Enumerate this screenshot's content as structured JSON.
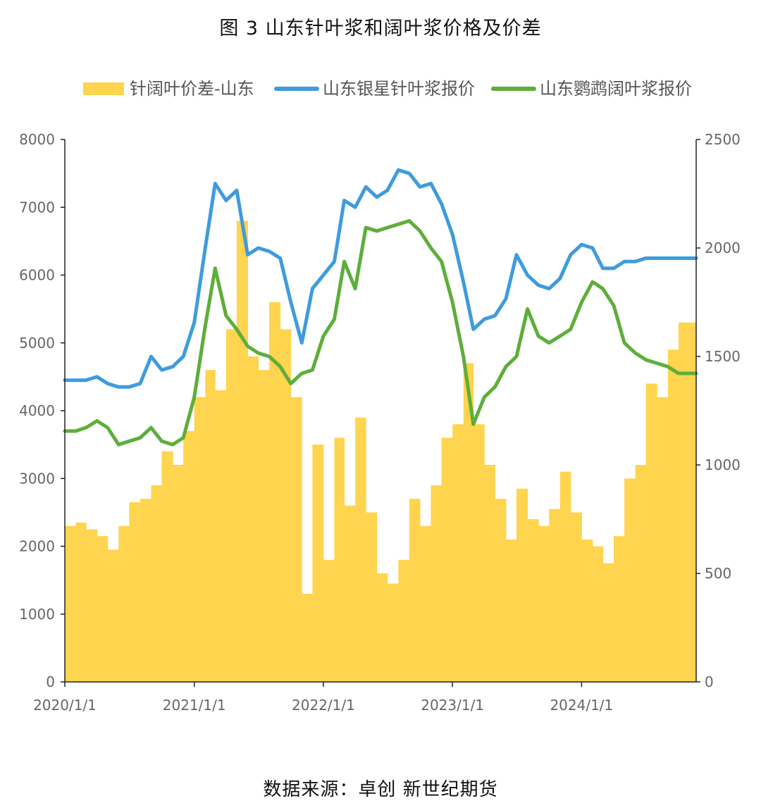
{
  "chart_data": {
    "type": "bar+line",
    "title": "图 3  山东针叶浆和阔叶浆价格及价差",
    "source": "数据来源：卓创  新世纪期货",
    "x_ticks": [
      "2020/1/1",
      "2021/1/1",
      "2022/1/1",
      "2023/1/1",
      "2024/1/1"
    ],
    "x_range": [
      "2020-01-01",
      "2024-11-20"
    ],
    "y_left": {
      "lim": [
        0,
        8000
      ],
      "ticks": [
        0,
        1000,
        2000,
        3000,
        4000,
        5000,
        6000,
        7000,
        8000
      ]
    },
    "y_right": {
      "lim": [
        0,
        2500
      ],
      "ticks": [
        0,
        500,
        1000,
        1500,
        2000,
        2500
      ]
    },
    "legend_placement": "top",
    "series": [
      {
        "name": "针阔叶价差-山东",
        "type": "bar",
        "axis": "left",
        "color": "#FFD44E",
        "points": [
          [
            "2020-01-01",
            2300
          ],
          [
            "2020-02-01",
            2350
          ],
          [
            "2020-03-01",
            2250
          ],
          [
            "2020-04-01",
            2150
          ],
          [
            "2020-05-01",
            1950
          ],
          [
            "2020-06-01",
            2300
          ],
          [
            "2020-07-01",
            2650
          ],
          [
            "2020-08-01",
            2700
          ],
          [
            "2020-09-01",
            2900
          ],
          [
            "2020-10-01",
            3400
          ],
          [
            "2020-11-01",
            3200
          ],
          [
            "2020-12-01",
            3700
          ],
          [
            "2021-01-01",
            4200
          ],
          [
            "2021-02-01",
            4600
          ],
          [
            "2021-03-01",
            4300
          ],
          [
            "2021-04-01",
            5200
          ],
          [
            "2021-05-01",
            6800
          ],
          [
            "2021-06-01",
            4800
          ],
          [
            "2021-07-01",
            4600
          ],
          [
            "2021-08-01",
            5600
          ],
          [
            "2021-09-01",
            5200
          ],
          [
            "2021-10-01",
            4200
          ],
          [
            "2021-11-01",
            1300
          ],
          [
            "2021-12-01",
            3500
          ],
          [
            "2022-01-01",
            1800
          ],
          [
            "2022-02-01",
            3600
          ],
          [
            "2022-03-01",
            2600
          ],
          [
            "2022-04-01",
            3900
          ],
          [
            "2022-05-01",
            2500
          ],
          [
            "2022-06-01",
            1600
          ],
          [
            "2022-07-01",
            1450
          ],
          [
            "2022-08-01",
            1800
          ],
          [
            "2022-09-01",
            2700
          ],
          [
            "2022-10-01",
            2300
          ],
          [
            "2022-11-01",
            2900
          ],
          [
            "2022-12-01",
            3600
          ],
          [
            "2023-01-01",
            3800
          ],
          [
            "2023-02-01",
            4700
          ],
          [
            "2023-03-01",
            3800
          ],
          [
            "2023-04-01",
            3200
          ],
          [
            "2023-05-01",
            2700
          ],
          [
            "2023-06-01",
            2100
          ],
          [
            "2023-07-01",
            2850
          ],
          [
            "2023-08-01",
            2400
          ],
          [
            "2023-09-01",
            2300
          ],
          [
            "2023-10-01",
            2550
          ],
          [
            "2023-11-01",
            3100
          ],
          [
            "2023-12-01",
            2500
          ],
          [
            "2024-01-01",
            2100
          ],
          [
            "2024-02-01",
            2000
          ],
          [
            "2024-03-01",
            1750
          ],
          [
            "2024-04-01",
            2150
          ],
          [
            "2024-05-01",
            3000
          ],
          [
            "2024-06-01",
            3200
          ],
          [
            "2024-07-01",
            4400
          ],
          [
            "2024-08-01",
            4200
          ],
          [
            "2024-09-01",
            4900
          ],
          [
            "2024-10-01",
            5300
          ],
          [
            "2024-11-20",
            5500
          ]
        ]
      },
      {
        "name": "山东银星针叶浆报价",
        "type": "line",
        "axis": "left",
        "color": "#3E9BDE",
        "points": [
          [
            "2020-01-01",
            4450
          ],
          [
            "2020-02-01",
            4450
          ],
          [
            "2020-03-01",
            4450
          ],
          [
            "2020-04-01",
            4500
          ],
          [
            "2020-05-01",
            4400
          ],
          [
            "2020-06-01",
            4350
          ],
          [
            "2020-07-01",
            4350
          ],
          [
            "2020-08-01",
            4400
          ],
          [
            "2020-09-01",
            4800
          ],
          [
            "2020-10-01",
            4600
          ],
          [
            "2020-11-01",
            4650
          ],
          [
            "2020-12-01",
            4800
          ],
          [
            "2021-01-01",
            5300
          ],
          [
            "2021-02-01",
            6400
          ],
          [
            "2021-03-01",
            7350
          ],
          [
            "2021-04-01",
            7100
          ],
          [
            "2021-05-01",
            7250
          ],
          [
            "2021-06-01",
            6300
          ],
          [
            "2021-07-01",
            6400
          ],
          [
            "2021-08-01",
            6350
          ],
          [
            "2021-09-01",
            6250
          ],
          [
            "2021-10-01",
            5600
          ],
          [
            "2021-11-01",
            5000
          ],
          [
            "2021-12-01",
            5800
          ],
          [
            "2022-01-01",
            6000
          ],
          [
            "2022-02-01",
            6200
          ],
          [
            "2022-03-01",
            7100
          ],
          [
            "2022-04-01",
            7000
          ],
          [
            "2022-05-01",
            7300
          ],
          [
            "2022-06-01",
            7150
          ],
          [
            "2022-07-01",
            7250
          ],
          [
            "2022-08-01",
            7550
          ],
          [
            "2022-09-01",
            7500
          ],
          [
            "2022-10-01",
            7300
          ],
          [
            "2022-11-01",
            7350
          ],
          [
            "2022-12-01",
            7050
          ],
          [
            "2023-01-01",
            6600
          ],
          [
            "2023-02-01",
            5900
          ],
          [
            "2023-03-01",
            5200
          ],
          [
            "2023-04-01",
            5350
          ],
          [
            "2023-05-01",
            5400
          ],
          [
            "2023-06-01",
            5650
          ],
          [
            "2023-07-01",
            6300
          ],
          [
            "2023-08-01",
            6000
          ],
          [
            "2023-09-01",
            5850
          ],
          [
            "2023-10-01",
            5800
          ],
          [
            "2023-11-01",
            5950
          ],
          [
            "2023-12-01",
            6300
          ],
          [
            "2024-01-01",
            6450
          ],
          [
            "2024-02-01",
            6400
          ],
          [
            "2024-03-01",
            6100
          ],
          [
            "2024-04-01",
            6100
          ],
          [
            "2024-05-01",
            6200
          ],
          [
            "2024-06-01",
            6200
          ],
          [
            "2024-07-01",
            6250
          ],
          [
            "2024-08-01",
            6250
          ],
          [
            "2024-09-01",
            6250
          ],
          [
            "2024-10-01",
            6250
          ],
          [
            "2024-11-20",
            6250
          ]
        ]
      },
      {
        "name": "山东鹦鹉阔叶浆报价",
        "type": "line",
        "axis": "left",
        "color": "#5DAE3A",
        "points": [
          [
            "2020-01-01",
            3700
          ],
          [
            "2020-02-01",
            3700
          ],
          [
            "2020-03-01",
            3750
          ],
          [
            "2020-04-01",
            3850
          ],
          [
            "2020-05-01",
            3750
          ],
          [
            "2020-06-01",
            3500
          ],
          [
            "2020-07-01",
            3550
          ],
          [
            "2020-08-01",
            3600
          ],
          [
            "2020-09-01",
            3750
          ],
          [
            "2020-10-01",
            3550
          ],
          [
            "2020-11-01",
            3500
          ],
          [
            "2020-12-01",
            3600
          ],
          [
            "2021-01-01",
            4200
          ],
          [
            "2021-02-01",
            5250
          ],
          [
            "2021-03-01",
            6100
          ],
          [
            "2021-04-01",
            5400
          ],
          [
            "2021-05-01",
            5200
          ],
          [
            "2021-06-01",
            4950
          ],
          [
            "2021-07-01",
            4850
          ],
          [
            "2021-08-01",
            4800
          ],
          [
            "2021-09-01",
            4650
          ],
          [
            "2021-10-01",
            4400
          ],
          [
            "2021-11-01",
            4550
          ],
          [
            "2021-12-01",
            4600
          ],
          [
            "2022-01-01",
            5100
          ],
          [
            "2022-02-01",
            5350
          ],
          [
            "2022-03-01",
            6200
          ],
          [
            "2022-04-01",
            5800
          ],
          [
            "2022-05-01",
            6700
          ],
          [
            "2022-06-01",
            6650
          ],
          [
            "2022-07-01",
            6700
          ],
          [
            "2022-08-01",
            6750
          ],
          [
            "2022-09-01",
            6800
          ],
          [
            "2022-10-01",
            6650
          ],
          [
            "2022-11-01",
            6400
          ],
          [
            "2022-12-01",
            6200
          ],
          [
            "2023-01-01",
            5600
          ],
          [
            "2023-02-01",
            4800
          ],
          [
            "2023-03-01",
            3800
          ],
          [
            "2023-04-01",
            4200
          ],
          [
            "2023-05-01",
            4350
          ],
          [
            "2023-06-01",
            4650
          ],
          [
            "2023-07-01",
            4800
          ],
          [
            "2023-08-01",
            5500
          ],
          [
            "2023-09-01",
            5100
          ],
          [
            "2023-10-01",
            5000
          ],
          [
            "2023-11-01",
            5100
          ],
          [
            "2023-12-01",
            5200
          ],
          [
            "2024-01-01",
            5600
          ],
          [
            "2024-02-01",
            5900
          ],
          [
            "2024-03-01",
            5800
          ],
          [
            "2024-04-01",
            5550
          ],
          [
            "2024-05-01",
            5000
          ],
          [
            "2024-06-01",
            4850
          ],
          [
            "2024-07-01",
            4750
          ],
          [
            "2024-08-01",
            4700
          ],
          [
            "2024-09-01",
            4650
          ],
          [
            "2024-10-01",
            4550
          ],
          [
            "2024-11-20",
            4550
          ]
        ]
      }
    ]
  }
}
